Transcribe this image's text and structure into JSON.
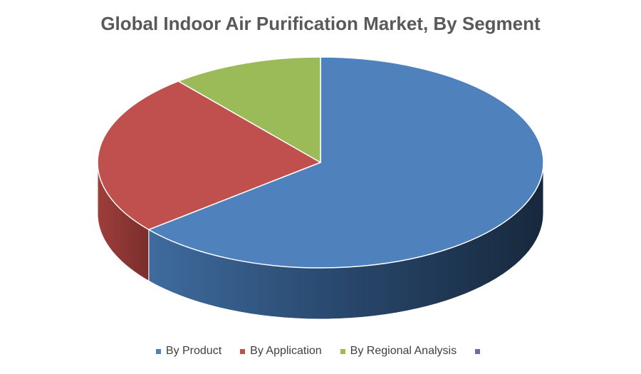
{
  "chart_data": {
    "type": "pie",
    "style": "3d",
    "title": "Global Indoor Air Purification Market, By Segment",
    "legend_position": "bottom",
    "series": [
      {
        "name": "By Product",
        "value": 0.64,
        "color": "#4F81BD"
      },
      {
        "name": "By Application",
        "value": 0.25,
        "color": "#C0504D"
      },
      {
        "name": "By Regional Analysis",
        "value": 0.11,
        "color": "#9BBB59"
      },
      {
        "name": "",
        "value": 0,
        "color": "#8064A2"
      }
    ]
  }
}
